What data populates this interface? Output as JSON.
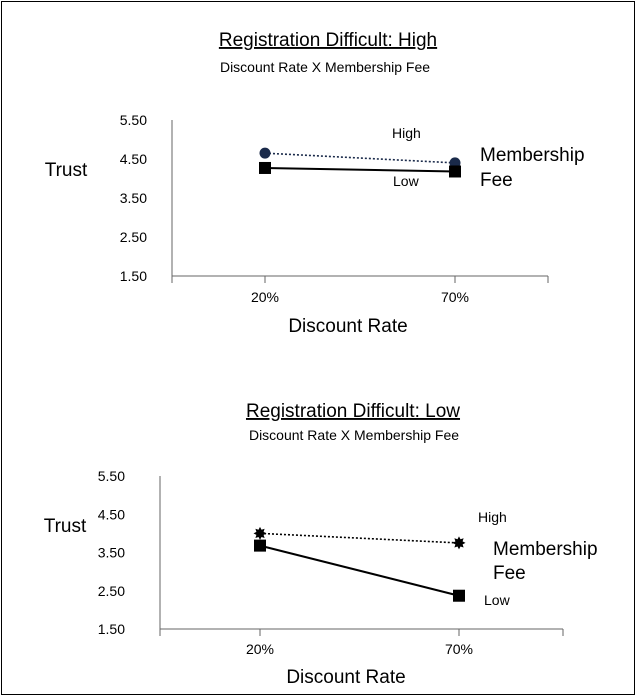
{
  "chart_data": [
    {
      "type": "line",
      "title": "Registration Difficult: High",
      "subtitle": "Discount Rate X Membership Fee",
      "xlabel": "Discount Rate",
      "ylabel": "Trust",
      "categories": [
        "20%",
        "70%"
      ],
      "yticks": [
        "5.50",
        "4.50",
        "3.50",
        "2.50",
        "1.50"
      ],
      "ylim": [
        1.5,
        5.5
      ],
      "legend_title": [
        "Membership",
        "Fee"
      ],
      "series": [
        {
          "name": "High",
          "values": [
            4.65,
            4.4
          ],
          "line": "dotted",
          "marker": "circle",
          "color": "#1a2a4a"
        },
        {
          "name": "Low",
          "values": [
            4.27,
            4.18
          ],
          "line": "solid",
          "marker": "square",
          "color": "#000000"
        }
      ]
    },
    {
      "type": "line",
      "title": "Registration Difficult: Low",
      "subtitle": "Discount Rate X Membership Fee",
      "xlabel": "Discount Rate",
      "ylabel": "Trust",
      "categories": [
        "20%",
        "70%"
      ],
      "yticks": [
        "5.50",
        "4.50",
        "3.50",
        "2.50",
        "1.50"
      ],
      "ylim": [
        1.5,
        5.5
      ],
      "legend_title": [
        "Membership",
        "Fee"
      ],
      "series": [
        {
          "name": "High",
          "values": [
            4.0,
            3.75
          ],
          "line": "dotted",
          "marker": "star",
          "color": "#000000"
        },
        {
          "name": "Low",
          "values": [
            3.68,
            2.37
          ],
          "line": "solid",
          "marker": "square",
          "color": "#000000"
        }
      ]
    }
  ]
}
